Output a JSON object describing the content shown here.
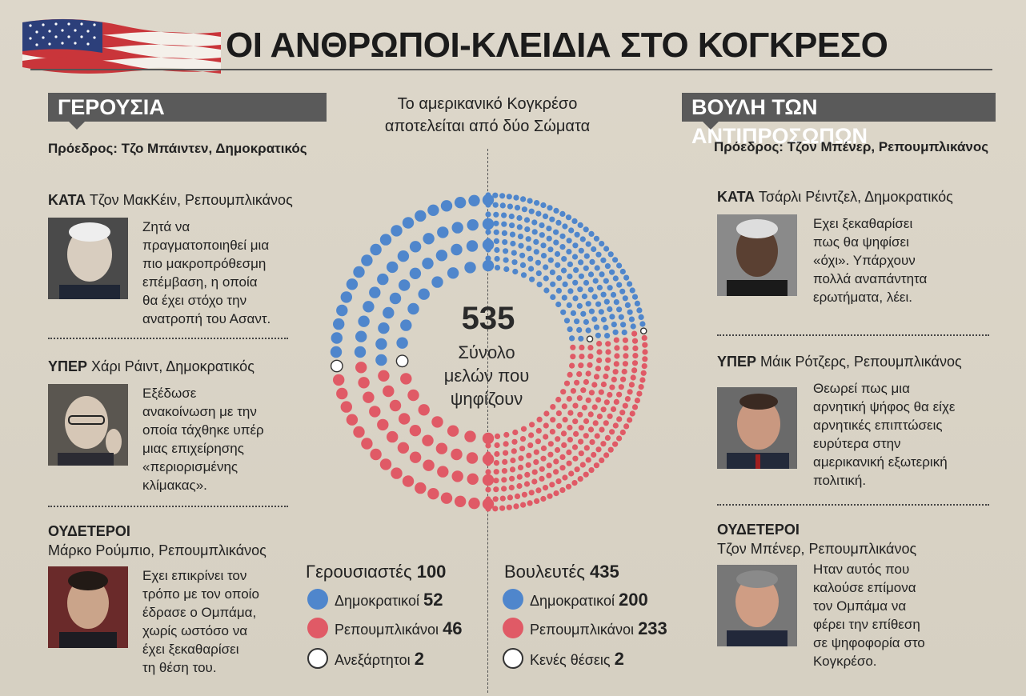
{
  "title": "ΟΙ ΑΝΘΡΩΠΟΙ-ΚΛΕΙΔΙΑ ΣΤΟ ΚΟΓΚΡΕΣΟ",
  "subtitle": [
    "Το αμερικανικό Κογκρέσο",
    "αποτελείται από δύο Σώματα"
  ],
  "colors": {
    "dem": "#4f86cc",
    "rep": "#e05a66",
    "empty": "#ffffff",
    "banner": "#5a5a5a"
  },
  "senate": {
    "banner": "ΓΕΡΟΥΣΙΑ",
    "president": "Πρόεδρος: Τζο Μπάιντεν, Δημοκρατικός",
    "people": [
      {
        "stance": "ΚΑΤΑ",
        "name": "Τζον ΜακΚέιν, Ρεπουμπλικάνος",
        "quote": [
          "Ζητά να",
          "πραγματοποιηθεί μια",
          "πιο μακροπρόθεσμη",
          "επέμβαση, η οποία",
          "θα έχει στόχο την",
          "ανατροπή του Ασαντ."
        ]
      },
      {
        "stance": "ΥΠΕΡ",
        "name": "Χάρι Ράιντ, Δημοκρατικός",
        "quote": [
          "Εξέδωσε",
          "ανακοίνωση με την",
          "οποία τάχθηκε υπέρ",
          "μιας επιχείρησης",
          "«περιορισμένης",
          "κλίμακας»."
        ]
      },
      {
        "stance": "ΟΥΔΕΤΕΡΟΙ",
        "name": "Μάρκο Ρούμπιο, Ρεπουμπλικάνος",
        "quote": [
          "Εχει επικρίνει τον",
          "τρόπο με τον οποίο",
          "έδρασε ο Ομπάμα,",
          "χωρίς ωστόσο να",
          "έχει ξεκαθαρίσει",
          "τη θέση του."
        ]
      }
    ]
  },
  "house": {
    "banner": "ΒΟΥΛΗ ΤΩΝ ΑΝΤΙΠΡΟΣΩΠΩΝ",
    "president": "Πρόεδρος: Τζον Μπένερ, Ρεπουμπλικάνος",
    "people": [
      {
        "stance": "ΚΑΤΑ",
        "name": "Τσάρλι Ρέιντζελ, Δημοκρατικός",
        "quote": [
          "Εχει ξεκαθαρίσει",
          "πως θα ψηφίσει",
          "«όχι». Υπάρχουν",
          "πολλά αναπάντητα",
          "ερωτήματα, λέει."
        ]
      },
      {
        "stance": "ΥΠΕΡ",
        "name": "Μάικ Ρότζερς, Ρεπουμπλικάνος",
        "quote": [
          "Θεωρεί πως μια",
          "αρνητική ψήφος θα είχε",
          "αρνητικές επιπτώσεις",
          "ευρύτερα στην",
          "αμερικανική εξωτερική",
          "πολιτική."
        ]
      },
      {
        "stance": "ΟΥΔΕΤΕΡΟΙ",
        "name": "Τζον Μπένερ, Ρεπουμπλικάνος",
        "quote": [
          "Ηταν αυτός που",
          "καλούσε επίμονα",
          "τον Ομπάμα να",
          "φέρει την επίθεση",
          "σε ψηφοφορία στο",
          "Κογκρέσο."
        ]
      }
    ]
  },
  "center": {
    "total": "535",
    "label": [
      "Σύνολο",
      "μελών που",
      "ψηφίζουν"
    ]
  },
  "chart_data": {
    "type": "parliament",
    "title": "535 Σύνολο μελών που ψηφίζουν",
    "total": 535,
    "chambers": [
      {
        "name": "Γερουσιαστές",
        "total": 100,
        "total_label": "100",
        "series": [
          {
            "name": "Δημοκρατικοί",
            "value": 52,
            "value_label": "52",
            "color": "#4f86cc"
          },
          {
            "name": "Ρεπουμπλικάνοι",
            "value": 46,
            "value_label": "46",
            "color": "#e05a66"
          },
          {
            "name": "Ανεξάρτητοι",
            "value": 2,
            "value_label": "2",
            "color": "#ffffff"
          }
        ]
      },
      {
        "name": "Βουλευτές",
        "total": 435,
        "total_label": "435",
        "series": [
          {
            "name": "Δημοκρατικοί",
            "value": 200,
            "value_label": "200",
            "color": "#4f86cc"
          },
          {
            "name": "Ρεπουμπλικάνοι",
            "value": 233,
            "value_label": "233",
            "color": "#e05a66"
          },
          {
            "name": "Κενές θέσεις",
            "value": 2,
            "value_label": "2",
            "color": "#ffffff"
          }
        ]
      }
    ]
  }
}
